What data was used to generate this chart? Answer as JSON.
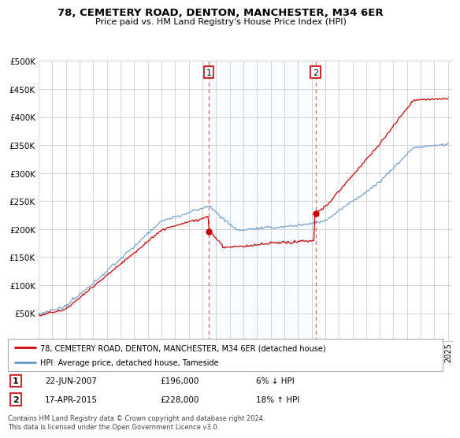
{
  "title": "78, CEMETERY ROAD, DENTON, MANCHESTER, M34 6ER",
  "subtitle": "Price paid vs. HM Land Registry's House Price Index (HPI)",
  "legend_line1": "78, CEMETERY ROAD, DENTON, MANCHESTER, M34 6ER (detached house)",
  "legend_line2": "HPI: Average price, detached house, Tameside",
  "annotation1_date": "22-JUN-2007",
  "annotation1_price": "£196,000",
  "annotation1_hpi": "6% ↓ HPI",
  "annotation1_year": 2007.47,
  "annotation1_value": 196000,
  "annotation2_date": "17-APR-2015",
  "annotation2_price": "£228,000",
  "annotation2_hpi": "18% ↑ HPI",
  "annotation2_year": 2015.29,
  "annotation2_value": 228000,
  "sold_color": "#cc0000",
  "hpi_color": "#6699cc",
  "vline_color": "#dd6666",
  "background_color": "#ffffff",
  "grid_color": "#cccccc",
  "span_color": "#ddeeff",
  "ylim": [
    0,
    500000
  ],
  "yticks": [
    0,
    50000,
    100000,
    150000,
    200000,
    250000,
    300000,
    350000,
    400000,
    450000,
    500000
  ],
  "footer": "Contains HM Land Registry data © Crown copyright and database right 2024.\nThis data is licensed under the Open Government Licence v3.0."
}
